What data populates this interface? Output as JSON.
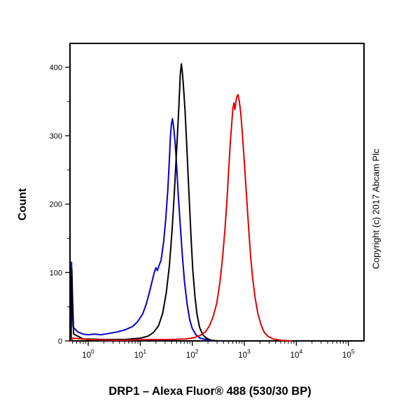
{
  "figure": {
    "title": "DRP1 – Alexa Fluor® 488 (530/30 BP)",
    "copyright": "Copyright (c) 2017 Abcam Plc"
  },
  "chart_data": {
    "type": "line",
    "title": "DRP1 – Alexa Fluor® 488 (530/30 BP)",
    "xlabel": "",
    "ylabel": "Count",
    "x_scale": "log10",
    "xlim_log10": [
      -0.35,
      5.3
    ],
    "ylim": [
      0,
      435
    ],
    "x_tick_exponents": [
      0,
      1,
      2,
      3,
      4,
      5
    ],
    "x_tick_base": "10",
    "y_ticks": [
      0,
      100,
      200,
      300,
      400
    ],
    "y_minor_step": 50,
    "grid": false,
    "legend": false,
    "axis_color": "#000000",
    "series": [
      {
        "name": "blue-curve",
        "color": "#0000cd",
        "points": [
          [
            -0.33,
            0
          ],
          [
            -0.32,
            115
          ],
          [
            -0.305,
            50
          ],
          [
            -0.29,
            20
          ],
          [
            -0.2,
            13
          ],
          [
            -0.1,
            10
          ],
          [
            0.0,
            9
          ],
          [
            0.12,
            10
          ],
          [
            0.25,
            9
          ],
          [
            0.4,
            11
          ],
          [
            0.55,
            13
          ],
          [
            0.7,
            16
          ],
          [
            0.85,
            21
          ],
          [
            0.95,
            28
          ],
          [
            1.05,
            40
          ],
          [
            1.12,
            55
          ],
          [
            1.18,
            72
          ],
          [
            1.23,
            88
          ],
          [
            1.27,
            100
          ],
          [
            1.3,
            107
          ],
          [
            1.33,
            103
          ],
          [
            1.36,
            110
          ],
          [
            1.4,
            118
          ],
          [
            1.45,
            145
          ],
          [
            1.49,
            178
          ],
          [
            1.53,
            222
          ],
          [
            1.56,
            266
          ],
          [
            1.58,
            300
          ],
          [
            1.6,
            318
          ],
          [
            1.62,
            325
          ],
          [
            1.64,
            314
          ],
          [
            1.67,
            290
          ],
          [
            1.7,
            255
          ],
          [
            1.73,
            214
          ],
          [
            1.77,
            168
          ],
          [
            1.81,
            124
          ],
          [
            1.85,
            87
          ],
          [
            1.9,
            54
          ],
          [
            1.95,
            31
          ],
          [
            2.0,
            18
          ],
          [
            2.07,
            9
          ],
          [
            2.15,
            4
          ],
          [
            2.26,
            2
          ],
          [
            2.4,
            0
          ]
        ]
      },
      {
        "name": "black-curve",
        "color": "#000000",
        "points": [
          [
            -0.33,
            0
          ],
          [
            -0.315,
            105
          ],
          [
            -0.3,
            60
          ],
          [
            -0.28,
            10
          ],
          [
            -0.1,
            3
          ],
          [
            0.3,
            2
          ],
          [
            0.7,
            2
          ],
          [
            1.0,
            4
          ],
          [
            1.15,
            7
          ],
          [
            1.25,
            12
          ],
          [
            1.35,
            22
          ],
          [
            1.43,
            40
          ],
          [
            1.5,
            70
          ],
          [
            1.56,
            110
          ],
          [
            1.61,
            160
          ],
          [
            1.65,
            210
          ],
          [
            1.69,
            265
          ],
          [
            1.72,
            310
          ],
          [
            1.74,
            340
          ],
          [
            1.76,
            372
          ],
          [
            1.77,
            390
          ],
          [
            1.79,
            405
          ],
          [
            1.81,
            392
          ],
          [
            1.83,
            372
          ],
          [
            1.86,
            338
          ],
          [
            1.89,
            292
          ],
          [
            1.92,
            243
          ],
          [
            1.95,
            193
          ],
          [
            1.98,
            146
          ],
          [
            2.01,
            104
          ],
          [
            2.05,
            66
          ],
          [
            2.09,
            39
          ],
          [
            2.14,
            20
          ],
          [
            2.2,
            9
          ],
          [
            2.27,
            4
          ],
          [
            2.36,
            1
          ],
          [
            2.5,
            0
          ]
        ]
      },
      {
        "name": "red-curve",
        "color": "#e00000",
        "points": [
          [
            -0.33,
            0
          ],
          [
            -0.3,
            4
          ],
          [
            0.0,
            2
          ],
          [
            0.6,
            1
          ],
          [
            1.2,
            2
          ],
          [
            1.6,
            2
          ],
          [
            1.9,
            3
          ],
          [
            2.05,
            5
          ],
          [
            2.15,
            8
          ],
          [
            2.25,
            13
          ],
          [
            2.33,
            22
          ],
          [
            2.4,
            35
          ],
          [
            2.47,
            55
          ],
          [
            2.53,
            85
          ],
          [
            2.58,
            120
          ],
          [
            2.63,
            165
          ],
          [
            2.67,
            210
          ],
          [
            2.7,
            250
          ],
          [
            2.73,
            290
          ],
          [
            2.76,
            320
          ],
          [
            2.78,
            340
          ],
          [
            2.8,
            348
          ],
          [
            2.82,
            338
          ],
          [
            2.84,
            350
          ],
          [
            2.86,
            358
          ],
          [
            2.88,
            360
          ],
          [
            2.9,
            352
          ],
          [
            2.93,
            335
          ],
          [
            2.96,
            305
          ],
          [
            3.0,
            262
          ],
          [
            3.04,
            215
          ],
          [
            3.08,
            168
          ],
          [
            3.12,
            125
          ],
          [
            3.16,
            92
          ],
          [
            3.21,
            62
          ],
          [
            3.26,
            40
          ],
          [
            3.32,
            24
          ],
          [
            3.38,
            13
          ],
          [
            3.45,
            7
          ],
          [
            3.55,
            3
          ],
          [
            3.7,
            1
          ],
          [
            3.9,
            0
          ]
        ]
      }
    ]
  }
}
